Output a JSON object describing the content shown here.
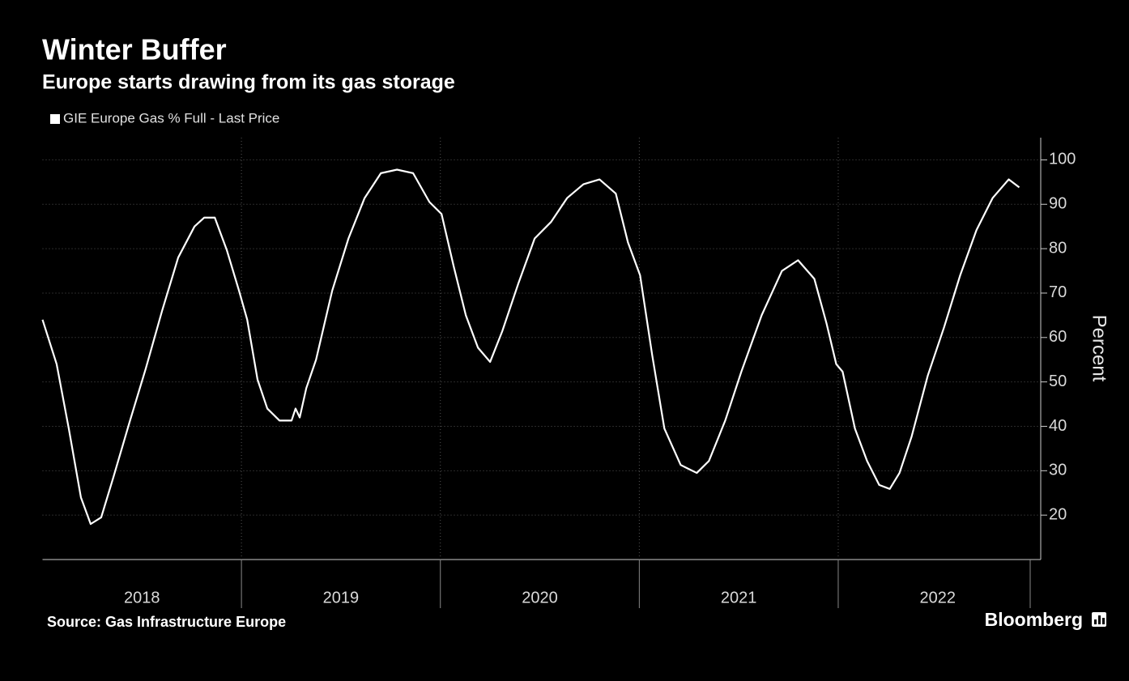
{
  "chart_data": {
    "type": "line",
    "title": "Winter Buffer",
    "subtitle": "Europe starts drawing from its gas storage",
    "source": "Source: Gas Infrastructure Europe",
    "brand": "Bloomberg",
    "y_axis_label": "Percent",
    "legend": "top-left",
    "grid": true,
    "x": [
      2018.0,
      2018.071,
      2018.132,
      2018.193,
      2018.242,
      2018.295,
      2018.356,
      2018.438,
      2018.519,
      2018.601,
      2018.682,
      2018.764,
      2018.813,
      2018.866,
      2018.927,
      2018.988,
      2019.029,
      2019.081,
      2019.13,
      2019.191,
      2019.252,
      2019.272,
      2019.293,
      2019.326,
      2019.375,
      2019.456,
      2019.538,
      2019.619,
      2019.701,
      2019.782,
      2019.863,
      2019.945,
      2020.006,
      2020.067,
      2020.128,
      2020.189,
      2020.25,
      2020.311,
      2020.393,
      2020.474,
      2020.556,
      2020.637,
      2020.719,
      2020.8,
      2020.882,
      2020.943,
      2021.004,
      2021.065,
      2021.126,
      2021.208,
      2021.248,
      2021.289,
      2021.35,
      2021.432,
      2021.513,
      2021.615,
      2021.717,
      2021.798,
      2021.88,
      2021.941,
      2021.99,
      2022.022,
      2022.084,
      2022.145,
      2022.206,
      2022.259,
      2022.308,
      2022.369,
      2022.45,
      2022.532,
      2022.613,
      2022.695,
      2022.776,
      2022.857,
      2022.91
    ],
    "series": [
      {
        "name": "GIE Europe Gas % Full - Last Price",
        "color": "#ffffff",
        "values": [
          64,
          54,
          39.5,
          24,
          18,
          19.5,
          28.5,
          41,
          53,
          66,
          78,
          85,
          87,
          87,
          79.6,
          70.5,
          64,
          50.5,
          44,
          41.3,
          41.3,
          44,
          42,
          48.6,
          55,
          70.5,
          82.3,
          91.4,
          97,
          97.8,
          97,
          90.5,
          87.8,
          76,
          65,
          57.7,
          54.5,
          61.4,
          72.3,
          82.3,
          86,
          91.4,
          94.5,
          95.6,
          92.4,
          81.4,
          74,
          56,
          39.5,
          31.3,
          30.4,
          29.5,
          32.2,
          41.3,
          52.3,
          65,
          75,
          77.4,
          73.2,
          63.2,
          54,
          52.3,
          39.5,
          32.2,
          26.8,
          25.9,
          29.5,
          37.7,
          51.4,
          62.3,
          74,
          84.2,
          91.4,
          95.6,
          93.8
        ]
      }
    ],
    "xlim": [
      2018,
      2022.965
    ],
    "xticks": [
      {
        "value": 2018.5,
        "label": "2018"
      },
      {
        "value": 2019.5,
        "label": "2019"
      },
      {
        "value": 2020.5,
        "label": "2020"
      },
      {
        "value": 2021.5,
        "label": "2021"
      },
      {
        "value": 2022.5,
        "label": "2022"
      }
    ],
    "year_separators": [
      2019,
      2020,
      2021,
      2022
    ],
    "ylim": [
      10,
      105
    ],
    "yticks": [
      20,
      30,
      40,
      50,
      60,
      70,
      80,
      90,
      100
    ]
  }
}
